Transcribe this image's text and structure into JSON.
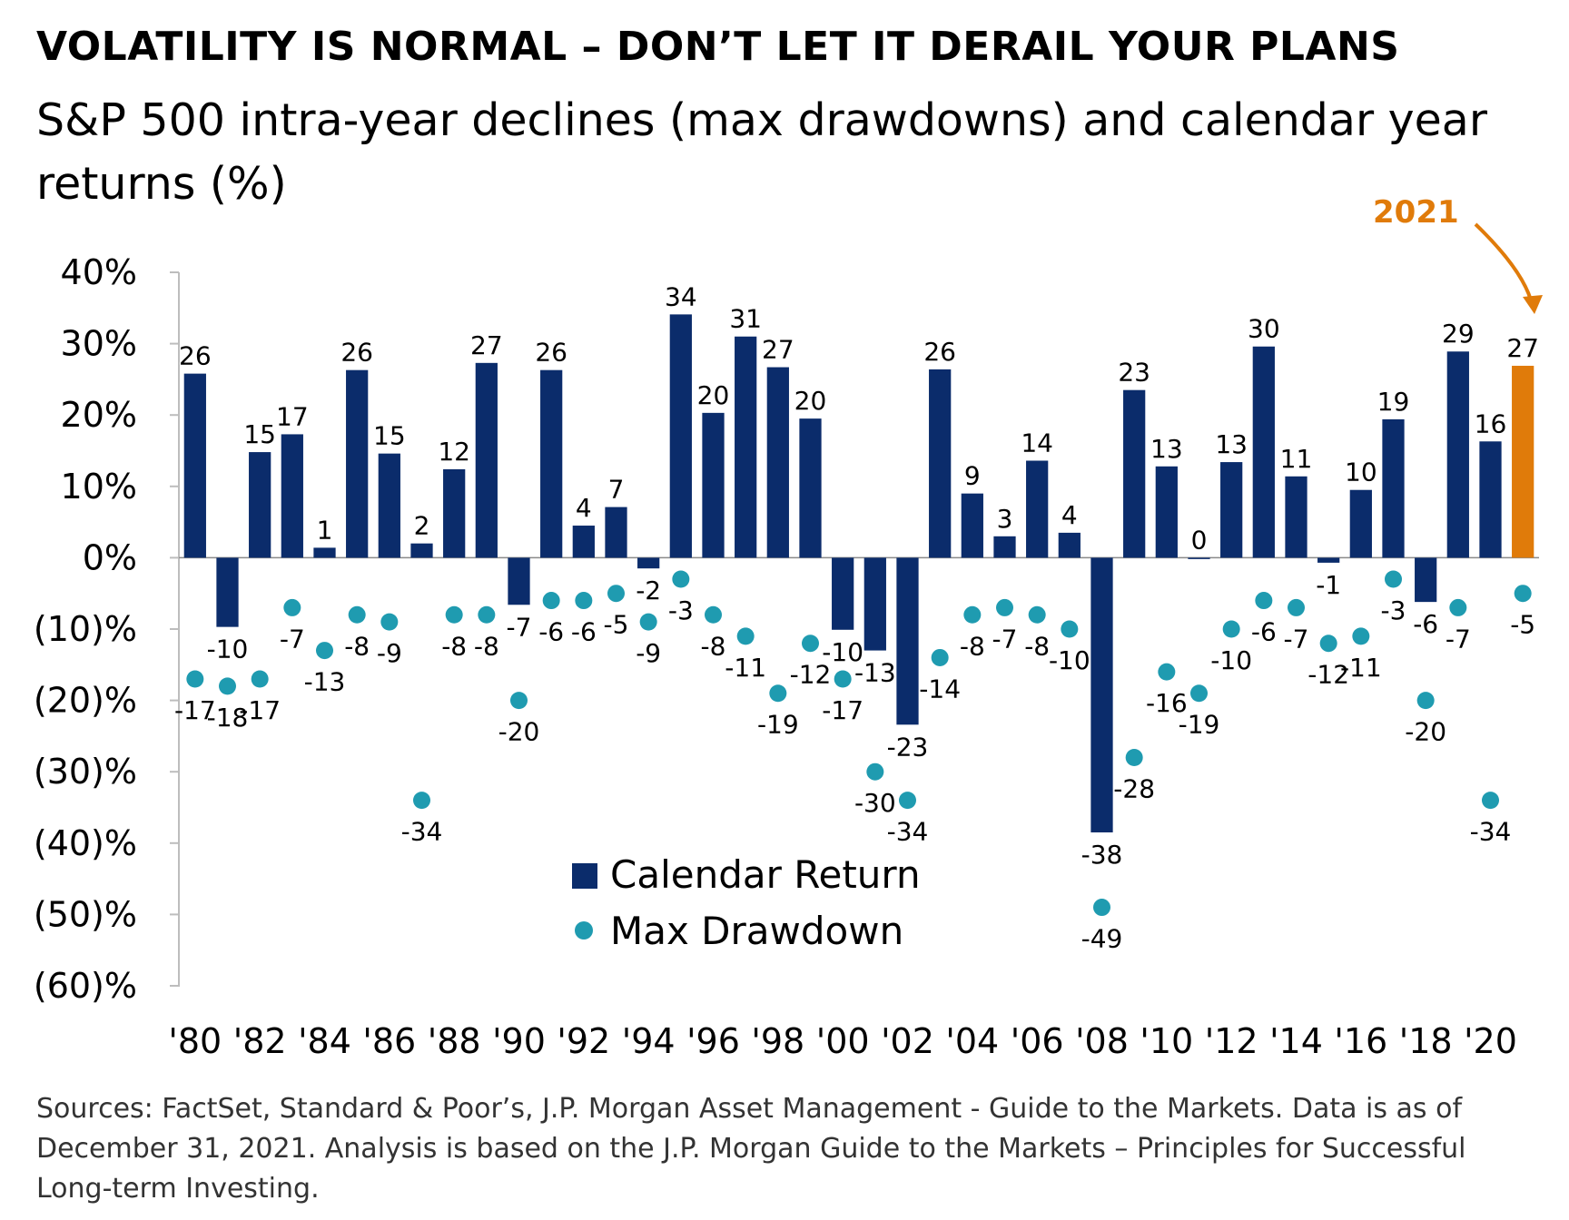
{
  "title": "VOLATILITY IS NORMAL – DON’T LET IT DERAIL YOUR PLANS",
  "subtitle": "S&P 500 intra-year declines (max drawdowns) and calendar year returns (%)",
  "sources": "Sources: FactSet, Standard & Poor’s, J.P. Morgan Asset Management - Guide to the Markets. Data is as of December 31, 2021. Analysis is based on the J.P. Morgan Guide to the Markets – Principles for Successful Long-term Investing.",
  "highlight_label": "2021",
  "chart_data": {
    "type": "bar",
    "title": "S&P 500 intra-year declines (max drawdowns) and calendar year returns (%)",
    "ylim": [
      -60,
      40
    ],
    "y_ticks": [
      {
        "value": 40,
        "label": "40%"
      },
      {
        "value": 30,
        "label": "30%"
      },
      {
        "value": 20,
        "label": "20%"
      },
      {
        "value": 10,
        "label": "10%"
      },
      {
        "value": 0,
        "label": "0%"
      },
      {
        "value": -10,
        "label": "(10)%"
      },
      {
        "value": -20,
        "label": "(20)%"
      },
      {
        "value": -30,
        "label": "(30)%"
      },
      {
        "value": -40,
        "label": "(40)%"
      },
      {
        "value": -50,
        "label": "(50)%"
      },
      {
        "value": -60,
        "label": "(60)%"
      }
    ],
    "years": [
      1980,
      1981,
      1982,
      1983,
      1984,
      1985,
      1986,
      1987,
      1988,
      1989,
      1990,
      1991,
      1992,
      1993,
      1994,
      1995,
      1996,
      1997,
      1998,
      1999,
      2000,
      2001,
      2002,
      2003,
      2004,
      2005,
      2006,
      2007,
      2008,
      2009,
      2010,
      2011,
      2012,
      2013,
      2014,
      2015,
      2016,
      2017,
      2018,
      2019,
      2020,
      2021
    ],
    "x_tick_labels": [
      "'80",
      "'82",
      "'84",
      "'86",
      "'88",
      "'90",
      "'92",
      "'94",
      "'96",
      "'98",
      "'00",
      "'02",
      "'04",
      "'06",
      "'08",
      "'10",
      "'12",
      "'14",
      "'16",
      "'18",
      "'20"
    ],
    "series": [
      {
        "name": "Calendar Return",
        "type": "bar",
        "color": "#0b2c6b",
        "highlight_color": "#e07b0a",
        "highlight_index": 41,
        "values": [
          26,
          -10,
          15,
          17,
          1,
          26,
          15,
          2,
          12,
          27,
          -7,
          26,
          4,
          7,
          -2,
          34,
          20,
          31,
          27,
          20,
          -10,
          -13,
          -23,
          26,
          9,
          3,
          14,
          4,
          -38,
          23,
          13,
          0,
          13,
          30,
          11,
          -1,
          10,
          19,
          -6,
          29,
          16,
          27
        ],
        "heights": [
          25.8,
          -9.7,
          14.8,
          17.3,
          1.4,
          26.3,
          14.6,
          2.0,
          12.4,
          27.3,
          -6.6,
          26.3,
          4.5,
          7.1,
          -1.5,
          34.1,
          20.3,
          31.0,
          26.7,
          19.5,
          -10.1,
          -13.0,
          -23.4,
          26.4,
          9.0,
          3.0,
          13.6,
          3.5,
          -38.5,
          23.5,
          12.8,
          0.0,
          13.4,
          29.6,
          11.4,
          -0.7,
          9.5,
          19.4,
          -6.2,
          28.9,
          16.3,
          26.9
        ]
      },
      {
        "name": "Max Drawdown",
        "type": "scatter",
        "color": "#1f9bb0",
        "values": [
          -17,
          -18,
          -17,
          -7,
          -13,
          -8,
          -9,
          -34,
          -8,
          -8,
          -20,
          -6,
          -6,
          -5,
          -9,
          -3,
          -8,
          -11,
          -19,
          -12,
          -17,
          -30,
          -34,
          -14,
          -8,
          -7,
          -8,
          -10,
          -49,
          -28,
          -16,
          -19,
          -10,
          -6,
          -7,
          -12,
          -11,
          -3,
          -20,
          -7,
          -34,
          -5
        ]
      }
    ],
    "legend": [
      {
        "label": "Calendar Return",
        "marker": "square"
      },
      {
        "label": "Max Drawdown",
        "marker": "circle"
      }
    ]
  }
}
